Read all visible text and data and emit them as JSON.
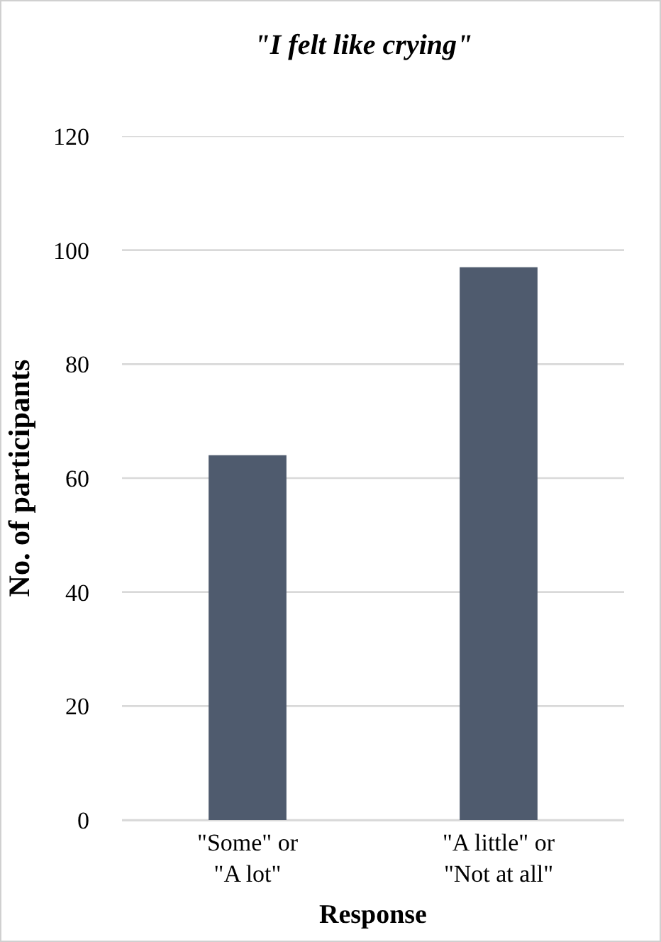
{
  "chart_data": {
    "type": "bar",
    "title": "\"I felt like crying\"",
    "xlabel": "Response",
    "ylabel": "No. of participants",
    "categories": [
      "\"Some\" or \"A lot\"",
      "\"A little\" or \"Not at all\""
    ],
    "values": [
      64,
      97
    ],
    "color": "#4f5b6e",
    "ylim": [
      0,
      120
    ],
    "yticks": [
      0,
      20,
      40,
      60,
      80,
      100,
      120
    ],
    "grid": "y"
  }
}
